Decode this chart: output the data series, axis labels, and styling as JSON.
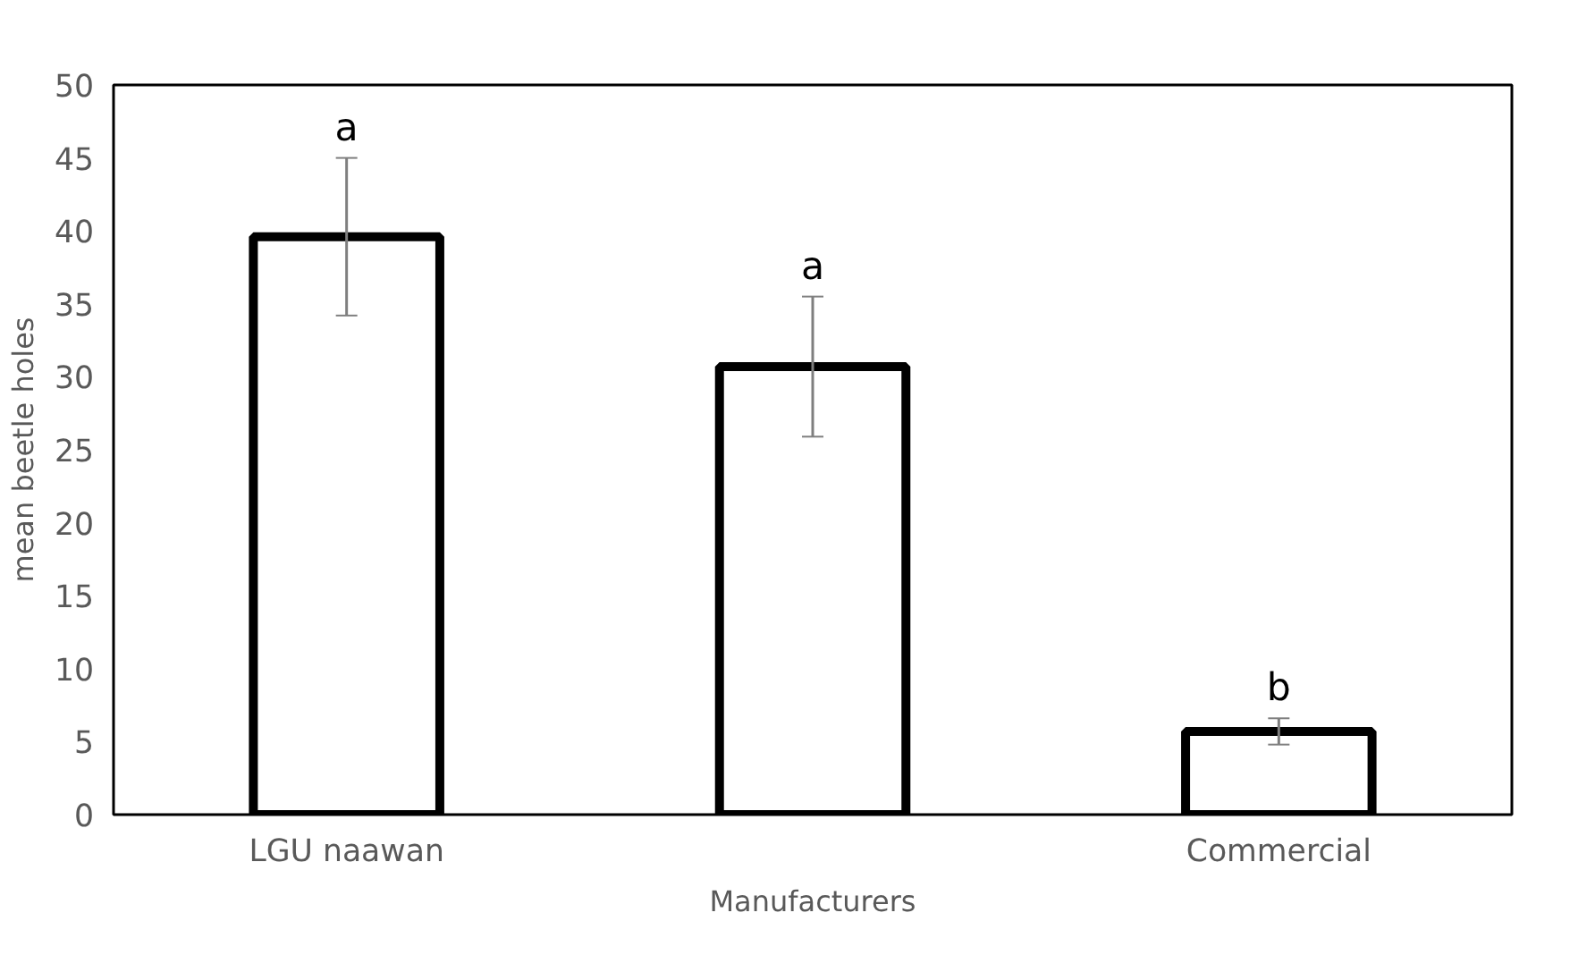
{
  "chart_data": {
    "type": "bar",
    "xlabel": "Manufacturers",
    "ylabel": "mean beetle holes",
    "categories": [
      "LGU naawan",
      null,
      "Commercial"
    ],
    "values": [
      39.6,
      30.7,
      5.7
    ],
    "errors": [
      5.4,
      4.8,
      0.9
    ],
    "color": "#000000",
    "ylim": [
      0,
      50
    ],
    "yticks": [
      0,
      5,
      10,
      15,
      20,
      25,
      30,
      35,
      40,
      45,
      50
    ],
    "grid": false,
    "annotations": [
      "a",
      "a",
      "b"
    ]
  }
}
